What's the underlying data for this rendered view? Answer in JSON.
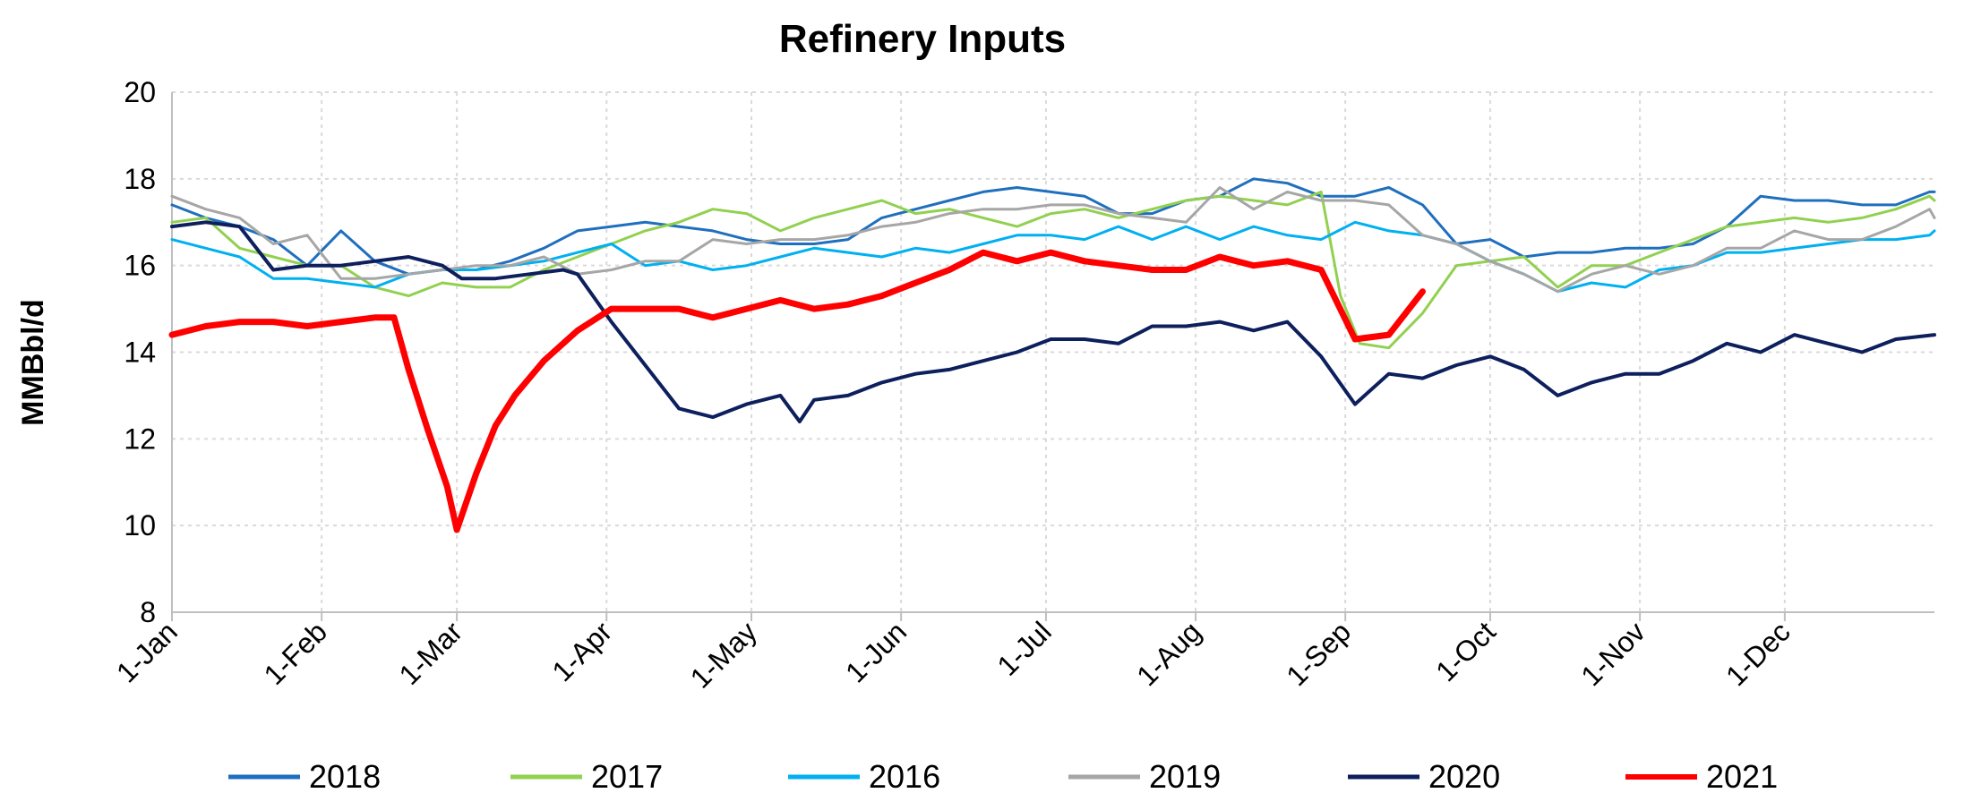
{
  "chart_data": {
    "type": "line",
    "title": "Refinery Inputs",
    "ylabel": "MMBbl/d",
    "xlabel": "",
    "ylim": [
      8,
      20
    ],
    "yticks": [
      8,
      10,
      12,
      14,
      16,
      18,
      20
    ],
    "xticks": [
      "1-Jan",
      "1-Feb",
      "1-Mar",
      "1-Apr",
      "1-May",
      "1-Jun",
      "1-Jul",
      "1-Aug",
      "1-Sep",
      "1-Oct",
      "1-Nov",
      "1-Dec"
    ],
    "xtick_days": [
      1,
      32,
      60,
      91,
      121,
      152,
      182,
      213,
      244,
      274,
      305,
      335
    ],
    "xlim_days": [
      1,
      366
    ],
    "grid": "dashed vertical and horizontal",
    "legend_position": "bottom",
    "series": [
      {
        "name": "2018",
        "color": "#1F6FBF",
        "width": 3,
        "points": [
          [
            1,
            17.4
          ],
          [
            8,
            17.1
          ],
          [
            15,
            16.9
          ],
          [
            22,
            16.6
          ],
          [
            29,
            16.0
          ],
          [
            36,
            16.8
          ],
          [
            43,
            16.1
          ],
          [
            50,
            15.8
          ],
          [
            57,
            15.9
          ],
          [
            64,
            15.9
          ],
          [
            71,
            16.1
          ],
          [
            78,
            16.4
          ],
          [
            85,
            16.8
          ],
          [
            92,
            16.9
          ],
          [
            99,
            17.0
          ],
          [
            106,
            16.9
          ],
          [
            113,
            16.8
          ],
          [
            120,
            16.6
          ],
          [
            127,
            16.5
          ],
          [
            134,
            16.5
          ],
          [
            141,
            16.6
          ],
          [
            148,
            17.1
          ],
          [
            155,
            17.3
          ],
          [
            162,
            17.5
          ],
          [
            169,
            17.7
          ],
          [
            176,
            17.8
          ],
          [
            183,
            17.7
          ],
          [
            190,
            17.6
          ],
          [
            197,
            17.2
          ],
          [
            204,
            17.2
          ],
          [
            211,
            17.5
          ],
          [
            218,
            17.6
          ],
          [
            225,
            18.0
          ],
          [
            232,
            17.9
          ],
          [
            239,
            17.6
          ],
          [
            246,
            17.6
          ],
          [
            253,
            17.8
          ],
          [
            260,
            17.4
          ],
          [
            267,
            16.5
          ],
          [
            274,
            16.6
          ],
          [
            281,
            16.2
          ],
          [
            288,
            16.3
          ],
          [
            295,
            16.3
          ],
          [
            302,
            16.4
          ],
          [
            309,
            16.4
          ],
          [
            316,
            16.5
          ],
          [
            323,
            16.9
          ],
          [
            330,
            17.6
          ],
          [
            337,
            17.5
          ],
          [
            344,
            17.5
          ],
          [
            351,
            17.4
          ],
          [
            358,
            17.4
          ],
          [
            365,
            17.7
          ],
          [
            366,
            17.7
          ]
        ]
      },
      {
        "name": "2017",
        "color": "#92D050",
        "width": 3,
        "points": [
          [
            1,
            17.0
          ],
          [
            8,
            17.1
          ],
          [
            15,
            16.4
          ],
          [
            22,
            16.2
          ],
          [
            29,
            16.0
          ],
          [
            36,
            16.0
          ],
          [
            43,
            15.5
          ],
          [
            50,
            15.3
          ],
          [
            57,
            15.6
          ],
          [
            64,
            15.5
          ],
          [
            71,
            15.5
          ],
          [
            78,
            15.9
          ],
          [
            85,
            16.2
          ],
          [
            92,
            16.5
          ],
          [
            99,
            16.8
          ],
          [
            106,
            17.0
          ],
          [
            113,
            17.3
          ],
          [
            120,
            17.2
          ],
          [
            127,
            16.8
          ],
          [
            134,
            17.1
          ],
          [
            141,
            17.3
          ],
          [
            148,
            17.5
          ],
          [
            155,
            17.2
          ],
          [
            162,
            17.3
          ],
          [
            169,
            17.1
          ],
          [
            176,
            16.9
          ],
          [
            183,
            17.2
          ],
          [
            190,
            17.3
          ],
          [
            197,
            17.1
          ],
          [
            204,
            17.3
          ],
          [
            211,
            17.5
          ],
          [
            218,
            17.6
          ],
          [
            225,
            17.5
          ],
          [
            232,
            17.4
          ],
          [
            239,
            17.7
          ],
          [
            243,
            15.3
          ],
          [
            247,
            14.2
          ],
          [
            253,
            14.1
          ],
          [
            260,
            14.9
          ],
          [
            267,
            16.0
          ],
          [
            274,
            16.1
          ],
          [
            281,
            16.2
          ],
          [
            288,
            15.5
          ],
          [
            295,
            16.0
          ],
          [
            302,
            16.0
          ],
          [
            309,
            16.3
          ],
          [
            316,
            16.6
          ],
          [
            323,
            16.9
          ],
          [
            330,
            17.0
          ],
          [
            337,
            17.1
          ],
          [
            344,
            17.0
          ],
          [
            351,
            17.1
          ],
          [
            358,
            17.3
          ],
          [
            365,
            17.6
          ],
          [
            366,
            17.5
          ]
        ]
      },
      {
        "name": "2016",
        "color": "#00B0F0",
        "width": 3,
        "points": [
          [
            1,
            16.6
          ],
          [
            8,
            16.4
          ],
          [
            15,
            16.2
          ],
          [
            22,
            15.7
          ],
          [
            29,
            15.7
          ],
          [
            36,
            15.6
          ],
          [
            43,
            15.5
          ],
          [
            50,
            15.8
          ],
          [
            57,
            15.9
          ],
          [
            64,
            15.9
          ],
          [
            71,
            16.0
          ],
          [
            78,
            16.1
          ],
          [
            85,
            16.3
          ],
          [
            92,
            16.5
          ],
          [
            99,
            16.0
          ],
          [
            106,
            16.1
          ],
          [
            113,
            15.9
          ],
          [
            120,
            16.0
          ],
          [
            127,
            16.2
          ],
          [
            134,
            16.4
          ],
          [
            141,
            16.3
          ],
          [
            148,
            16.2
          ],
          [
            155,
            16.4
          ],
          [
            162,
            16.3
          ],
          [
            169,
            16.5
          ],
          [
            176,
            16.7
          ],
          [
            183,
            16.7
          ],
          [
            190,
            16.6
          ],
          [
            197,
            16.9
          ],
          [
            204,
            16.6
          ],
          [
            211,
            16.9
          ],
          [
            218,
            16.6
          ],
          [
            225,
            16.9
          ],
          [
            232,
            16.7
          ],
          [
            239,
            16.6
          ],
          [
            246,
            17.0
          ],
          [
            253,
            16.8
          ],
          [
            260,
            16.7
          ],
          [
            267,
            16.5
          ],
          [
            274,
            16.1
          ],
          [
            281,
            15.8
          ],
          [
            288,
            15.4
          ],
          [
            295,
            15.6
          ],
          [
            302,
            15.5
          ],
          [
            309,
            15.9
          ],
          [
            316,
            16.0
          ],
          [
            323,
            16.3
          ],
          [
            330,
            16.3
          ],
          [
            337,
            16.4
          ],
          [
            344,
            16.5
          ],
          [
            351,
            16.6
          ],
          [
            358,
            16.6
          ],
          [
            365,
            16.7
          ],
          [
            366,
            16.8
          ]
        ]
      },
      {
        "name": "2019",
        "color": "#A6A6A6",
        "width": 3,
        "points": [
          [
            1,
            17.6
          ],
          [
            8,
            17.3
          ],
          [
            15,
            17.1
          ],
          [
            22,
            16.5
          ],
          [
            29,
            16.7
          ],
          [
            36,
            15.7
          ],
          [
            43,
            15.7
          ],
          [
            50,
            15.8
          ],
          [
            57,
            15.9
          ],
          [
            64,
            16.0
          ],
          [
            71,
            16.0
          ],
          [
            78,
            16.2
          ],
          [
            85,
            15.8
          ],
          [
            92,
            15.9
          ],
          [
            99,
            16.1
          ],
          [
            106,
            16.1
          ],
          [
            113,
            16.6
          ],
          [
            120,
            16.5
          ],
          [
            127,
            16.6
          ],
          [
            134,
            16.6
          ],
          [
            141,
            16.7
          ],
          [
            148,
            16.9
          ],
          [
            155,
            17.0
          ],
          [
            162,
            17.2
          ],
          [
            169,
            17.3
          ],
          [
            176,
            17.3
          ],
          [
            183,
            17.4
          ],
          [
            190,
            17.4
          ],
          [
            197,
            17.2
          ],
          [
            204,
            17.1
          ],
          [
            211,
            17.0
          ],
          [
            218,
            17.8
          ],
          [
            225,
            17.3
          ],
          [
            232,
            17.7
          ],
          [
            239,
            17.5
          ],
          [
            246,
            17.5
          ],
          [
            253,
            17.4
          ],
          [
            260,
            16.7
          ],
          [
            267,
            16.5
          ],
          [
            274,
            16.1
          ],
          [
            281,
            15.8
          ],
          [
            288,
            15.4
          ],
          [
            295,
            15.8
          ],
          [
            302,
            16.0
          ],
          [
            309,
            15.8
          ],
          [
            316,
            16.0
          ],
          [
            323,
            16.4
          ],
          [
            330,
            16.4
          ],
          [
            337,
            16.8
          ],
          [
            344,
            16.6
          ],
          [
            351,
            16.6
          ],
          [
            358,
            16.9
          ],
          [
            365,
            17.3
          ],
          [
            366,
            17.1
          ]
        ]
      },
      {
        "name": "2020",
        "color": "#0D1F5C",
        "width": 4,
        "points": [
          [
            1,
            16.9
          ],
          [
            8,
            17.0
          ],
          [
            15,
            16.9
          ],
          [
            22,
            15.9
          ],
          [
            29,
            16.0
          ],
          [
            36,
            16.0
          ],
          [
            43,
            16.1
          ],
          [
            50,
            16.2
          ],
          [
            57,
            16.0
          ],
          [
            61,
            15.7
          ],
          [
            68,
            15.7
          ],
          [
            75,
            15.8
          ],
          [
            82,
            15.9
          ],
          [
            85,
            15.8
          ],
          [
            92,
            14.7
          ],
          [
            99,
            13.7
          ],
          [
            106,
            12.7
          ],
          [
            113,
            12.5
          ],
          [
            120,
            12.8
          ],
          [
            127,
            13.0
          ],
          [
            131,
            12.4
          ],
          [
            134,
            12.9
          ],
          [
            141,
            13.0
          ],
          [
            148,
            13.3
          ],
          [
            155,
            13.5
          ],
          [
            162,
            13.6
          ],
          [
            169,
            13.8
          ],
          [
            176,
            14.0
          ],
          [
            183,
            14.3
          ],
          [
            190,
            14.3
          ],
          [
            197,
            14.2
          ],
          [
            204,
            14.6
          ],
          [
            211,
            14.6
          ],
          [
            218,
            14.7
          ],
          [
            225,
            14.5
          ],
          [
            232,
            14.7
          ],
          [
            239,
            13.9
          ],
          [
            246,
            12.8
          ],
          [
            253,
            13.5
          ],
          [
            260,
            13.4
          ],
          [
            267,
            13.7
          ],
          [
            274,
            13.9
          ],
          [
            281,
            13.6
          ],
          [
            288,
            13.0
          ],
          [
            295,
            13.3
          ],
          [
            302,
            13.5
          ],
          [
            309,
            13.5
          ],
          [
            316,
            13.8
          ],
          [
            323,
            14.2
          ],
          [
            330,
            14.0
          ],
          [
            337,
            14.4
          ],
          [
            344,
            14.2
          ],
          [
            351,
            14.0
          ],
          [
            358,
            14.3
          ],
          [
            366,
            14.4
          ]
        ]
      },
      {
        "name": "2021",
        "color": "#FF0000",
        "width": 7,
        "points": [
          [
            1,
            14.4
          ],
          [
            8,
            14.6
          ],
          [
            15,
            14.7
          ],
          [
            22,
            14.7
          ],
          [
            29,
            14.6
          ],
          [
            36,
            14.7
          ],
          [
            43,
            14.8
          ],
          [
            47,
            14.8
          ],
          [
            50,
            13.6
          ],
          [
            54,
            12.2
          ],
          [
            58,
            10.9
          ],
          [
            60,
            9.9
          ],
          [
            64,
            11.2
          ],
          [
            68,
            12.3
          ],
          [
            72,
            13.0
          ],
          [
            78,
            13.8
          ],
          [
            85,
            14.5
          ],
          [
            92,
            15.0
          ],
          [
            99,
            15.0
          ],
          [
            106,
            15.0
          ],
          [
            113,
            14.8
          ],
          [
            120,
            15.0
          ],
          [
            127,
            15.2
          ],
          [
            134,
            15.0
          ],
          [
            141,
            15.1
          ],
          [
            148,
            15.3
          ],
          [
            155,
            15.6
          ],
          [
            162,
            15.9
          ],
          [
            169,
            16.3
          ],
          [
            176,
            16.1
          ],
          [
            183,
            16.3
          ],
          [
            190,
            16.1
          ],
          [
            197,
            16.0
          ],
          [
            204,
            15.9
          ],
          [
            211,
            15.9
          ],
          [
            218,
            16.2
          ],
          [
            225,
            16.0
          ],
          [
            232,
            16.1
          ],
          [
            239,
            15.9
          ],
          [
            246,
            14.3
          ],
          [
            253,
            14.4
          ],
          [
            260,
            15.4
          ]
        ]
      }
    ]
  }
}
